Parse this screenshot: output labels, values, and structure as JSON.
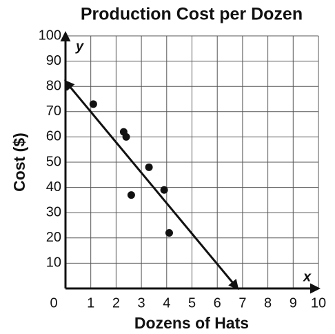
{
  "chart_data": {
    "type": "scatter",
    "title": "Production Cost per Dozen",
    "x_label": "Dozens of Hats",
    "y_label": "Cost ($)",
    "x_axis_letter": "x",
    "y_axis_letter": "y",
    "x": [
      1.1,
      2.3,
      2.4,
      3.3,
      2.6,
      3.9,
      4.1
    ],
    "values": [
      73,
      62,
      60,
      48,
      37,
      39,
      22
    ],
    "color": "#111111",
    "trend_line": {
      "x": [
        0,
        6.8
      ],
      "y": [
        82,
        0
      ]
    },
    "xlim": [
      0,
      10
    ],
    "ylim": [
      0,
      100
    ],
    "xticks": [
      0,
      1,
      2,
      3,
      4,
      5,
      6,
      7,
      8,
      9,
      10
    ],
    "yticks": [
      10,
      20,
      30,
      40,
      50,
      60,
      70,
      80,
      90,
      100
    ],
    "grid": true
  }
}
